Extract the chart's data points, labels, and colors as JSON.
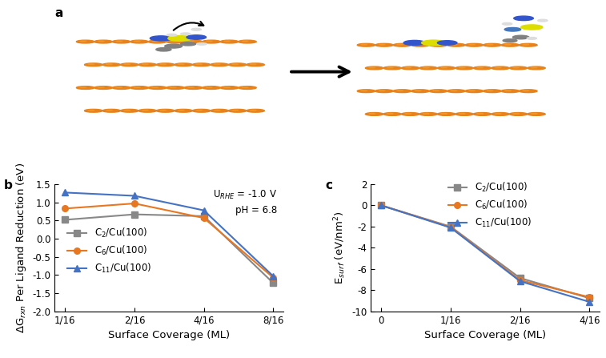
{
  "panel_b": {
    "x_labels": [
      "1/16",
      "2/16",
      "4/16",
      "8/16"
    ],
    "x_values": [
      0,
      1,
      2,
      3
    ],
    "series": {
      "C2": {
        "y": [
          0.52,
          0.67,
          0.62,
          -1.22
        ],
        "color": "#888888",
        "marker": "s",
        "label": "C$_2$/Cu(100)"
      },
      "C6": {
        "y": [
          0.83,
          0.97,
          0.57,
          -1.07
        ],
        "color": "#E87722",
        "marker": "o",
        "label": "C$_6$/Cu(100)"
      },
      "C11": {
        "y": [
          1.27,
          1.18,
          0.78,
          -1.03
        ],
        "color": "#4472C4",
        "marker": "^",
        "label": "C$_{11}$/Cu(100)"
      }
    },
    "ylabel": "ΔG$_{rxn}$ Per Ligand Reduction (eV)",
    "xlabel": "Surface Coverage (ML)",
    "ylim": [
      -2.0,
      1.5
    ],
    "yticks": [
      -2.0,
      -1.5,
      -1.0,
      -0.5,
      0.0,
      0.5,
      1.0,
      1.5
    ],
    "annotation_line1": "U$_{RHE}$ = -1.0 V",
    "annotation_line2": "pH = 6.8"
  },
  "panel_c": {
    "x_labels": [
      "0",
      "1/16",
      "2/16",
      "4/16"
    ],
    "x_values": [
      0,
      1,
      2,
      3
    ],
    "series": {
      "C2": {
        "y": [
          0.0,
          -2.0,
          -6.85,
          -8.75
        ],
        "color": "#888888",
        "marker": "s",
        "label": "C$_2$/Cu(100)"
      },
      "C6": {
        "y": [
          0.0,
          -2.05,
          -7.05,
          -8.65
        ],
        "color": "#E87722",
        "marker": "o",
        "label": "C$_6$/Cu(100)"
      },
      "C11": {
        "y": [
          0.0,
          -2.1,
          -7.15,
          -9.1
        ],
        "color": "#4472C4",
        "marker": "^",
        "label": "C$_{11}$/Cu(100)"
      }
    },
    "ylabel": "E$_{surf}$ (eV/nm$^2$)",
    "xlabel": "Surface Coverage (ML)",
    "ylim": [
      -10,
      2
    ],
    "yticks": [
      -10,
      -8,
      -6,
      -4,
      -2,
      0,
      2
    ]
  },
  "panel_labels_fontsize": 11,
  "tick_fontsize": 8.5,
  "label_fontsize": 9.5,
  "legend_fontsize": 8.5,
  "line_width": 1.5,
  "marker_size": 5.5
}
